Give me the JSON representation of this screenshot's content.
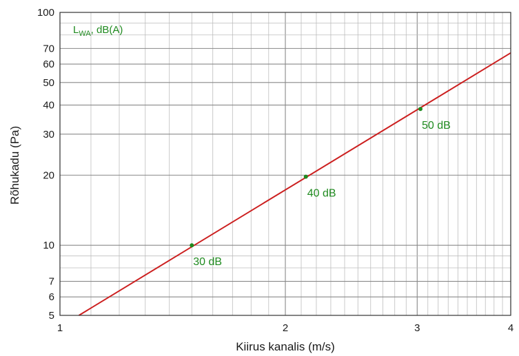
{
  "chart_data": {
    "type": "line",
    "x_scale": "log",
    "y_scale": "log",
    "xlim": [
      1,
      4
    ],
    "ylim": [
      5,
      100
    ],
    "xlabel": "Kiirus kanalis (m/s)",
    "ylabel": "Rõhukadu (Pa)",
    "x_ticks": [
      "1",
      "2",
      "3",
      "4"
    ],
    "y_ticks": [
      "5",
      "6",
      "7",
      "10",
      "20",
      "30",
      "40",
      "50",
      "60",
      "70",
      "100"
    ],
    "grid": true,
    "unit_label": {
      "base": "L",
      "sub": "WA",
      "rest": ", dB(A)"
    },
    "series": [
      {
        "x": [
          1.06,
          4.0
        ],
        "y": [
          5.0,
          67.0
        ],
        "color": "#cc1f1f"
      }
    ],
    "points": [
      {
        "x": 1.5,
        "y": 10.0,
        "label": "30 dB"
      },
      {
        "x": 2.13,
        "y": 19.7,
        "label": "40 dB"
      },
      {
        "x": 3.03,
        "y": 38.5,
        "label": "50 dB"
      }
    ],
    "point_color": "#1f8a1f",
    "grid_major_color": "#888888",
    "grid_minor_color": "#bdbdbd"
  }
}
